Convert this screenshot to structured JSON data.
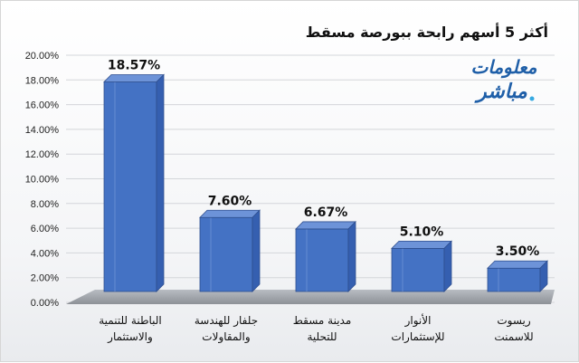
{
  "chart_data": {
    "type": "bar",
    "title": "أكثر 5 أسهم رابحة ببورصة مسقط",
    "categories": [
      [
        "الباطنة للتنمية",
        "والاستثمار"
      ],
      [
        "جلفار للهندسة",
        "والمقاولات"
      ],
      [
        "مدينة مسقط",
        "للتحلية"
      ],
      [
        "الأنوار",
        "للإستثمارات"
      ],
      [
        "ريسوت",
        "للاسمنت"
      ]
    ],
    "values": [
      18.57,
      7.6,
      6.67,
      5.1,
      3.5
    ],
    "value_labels": [
      "18.57%",
      "7.60%",
      "6.67%",
      "5.10%",
      "3.50%"
    ],
    "y_ticks": [
      "0.00%",
      "2.00%",
      "4.00%",
      "6.00%",
      "8.00%",
      "10.00%",
      "12.00%",
      "14.00%",
      "16.00%",
      "18.00%",
      "20.00%"
    ],
    "ylim": [
      0,
      20
    ],
    "xlabel": "",
    "ylabel": "",
    "grid": true,
    "bar_color": "#4472c4"
  },
  "logo": {
    "line1": "معلومات",
    "line2": "مباشر",
    "color": "#1f5fa8",
    "accent": "#36a9e1"
  }
}
